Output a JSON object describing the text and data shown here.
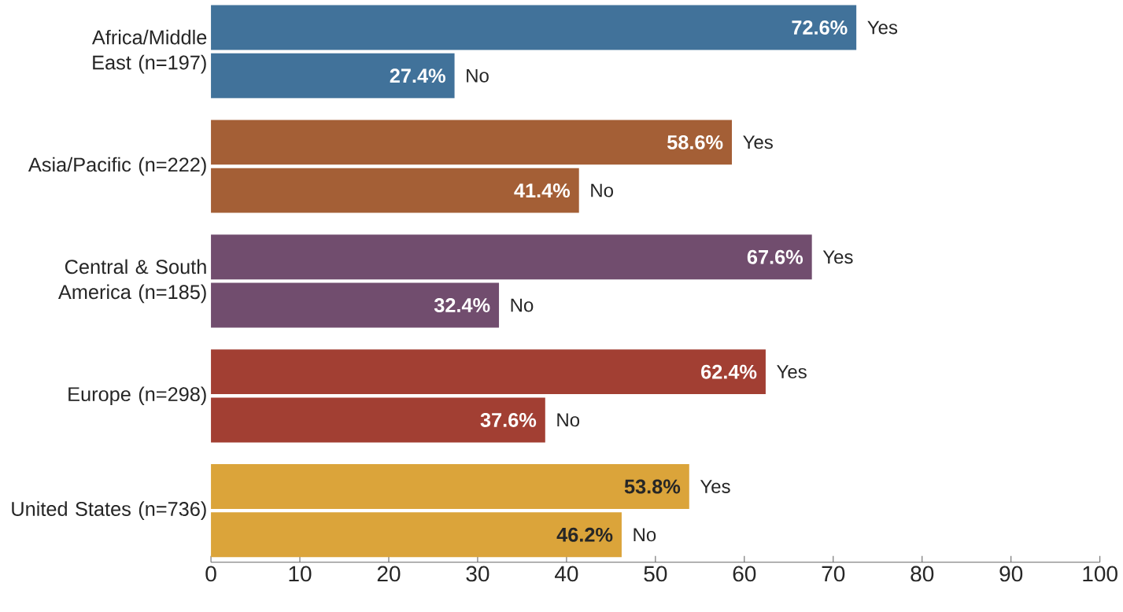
{
  "chart_data": {
    "type": "bar",
    "orientation": "horizontal",
    "categories": [
      "Africa/Middle East (n=197)",
      "Asia/Pacific (n=222)",
      "Central & South America (n=185)",
      "Europe (n=298)",
      "United States (n=736)"
    ],
    "series": [
      {
        "name": "Yes",
        "colors": [
          "#41729a",
          "#a45f36",
          "#714d6e",
          "#a23f33",
          "#dba43a"
        ],
        "values": [
          72.6,
          58.6,
          67.6,
          62.4,
          53.8
        ],
        "value_labels": [
          "72.6%",
          "58.6%",
          "67.6%",
          "62.4%",
          "53.8%"
        ]
      },
      {
        "name": "No",
        "colors": [
          "#41729a",
          "#a45f36",
          "#714d6e",
          "#a23f33",
          "#dba43a"
        ],
        "values": [
          27.4,
          41.4,
          32.4,
          37.6,
          46.2
        ],
        "value_labels": [
          "27.4%",
          "41.4%",
          "32.4%",
          "37.6%",
          "46.2%"
        ]
      }
    ],
    "xlim": [
      0,
      100
    ],
    "xticks": [
      0,
      10,
      20,
      30,
      40,
      50,
      60,
      70,
      80,
      90,
      100
    ]
  }
}
